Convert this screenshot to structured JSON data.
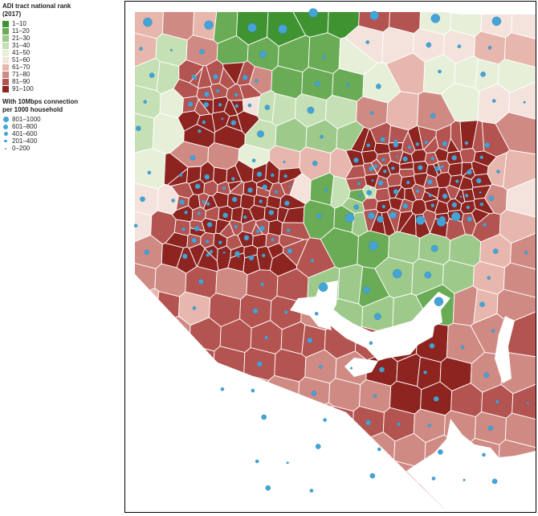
{
  "legend": {
    "adi_title_line1": "ADI tract national rank",
    "adi_title_line2": "(2017)",
    "adi_classes": [
      {
        "label": "1–10",
        "color": "#3f9331"
      },
      {
        "label": "11–20",
        "color": "#6aab55"
      },
      {
        "label": "21–30",
        "color": "#9dc98a"
      },
      {
        "label": "31–40",
        "color": "#c5e0b4"
      },
      {
        "label": "41–50",
        "color": "#e6f0d9"
      },
      {
        "label": "51–60",
        "color": "#f4e3dc"
      },
      {
        "label": "61–70",
        "color": "#e7b7ad"
      },
      {
        "label": "71–80",
        "color": "#d08a84"
      },
      {
        "label": "81–90",
        "color": "#b45450"
      },
      {
        "label": "91–100",
        "color": "#8e2420"
      }
    ],
    "conn_title_line1": "With 10Mbps connection",
    "conn_title_line2": "per 1000 household",
    "conn_classes": [
      {
        "label": "801–1000"
      },
      {
        "label": "601–800"
      },
      {
        "label": "401–600"
      },
      {
        "label": "201–400"
      },
      {
        "label": "0–200"
      }
    ]
  },
  "colors": {
    "water": "#ffffff",
    "dot": "#45a3d6",
    "tract_border": "#ffffff",
    "frame": "#000000"
  }
}
